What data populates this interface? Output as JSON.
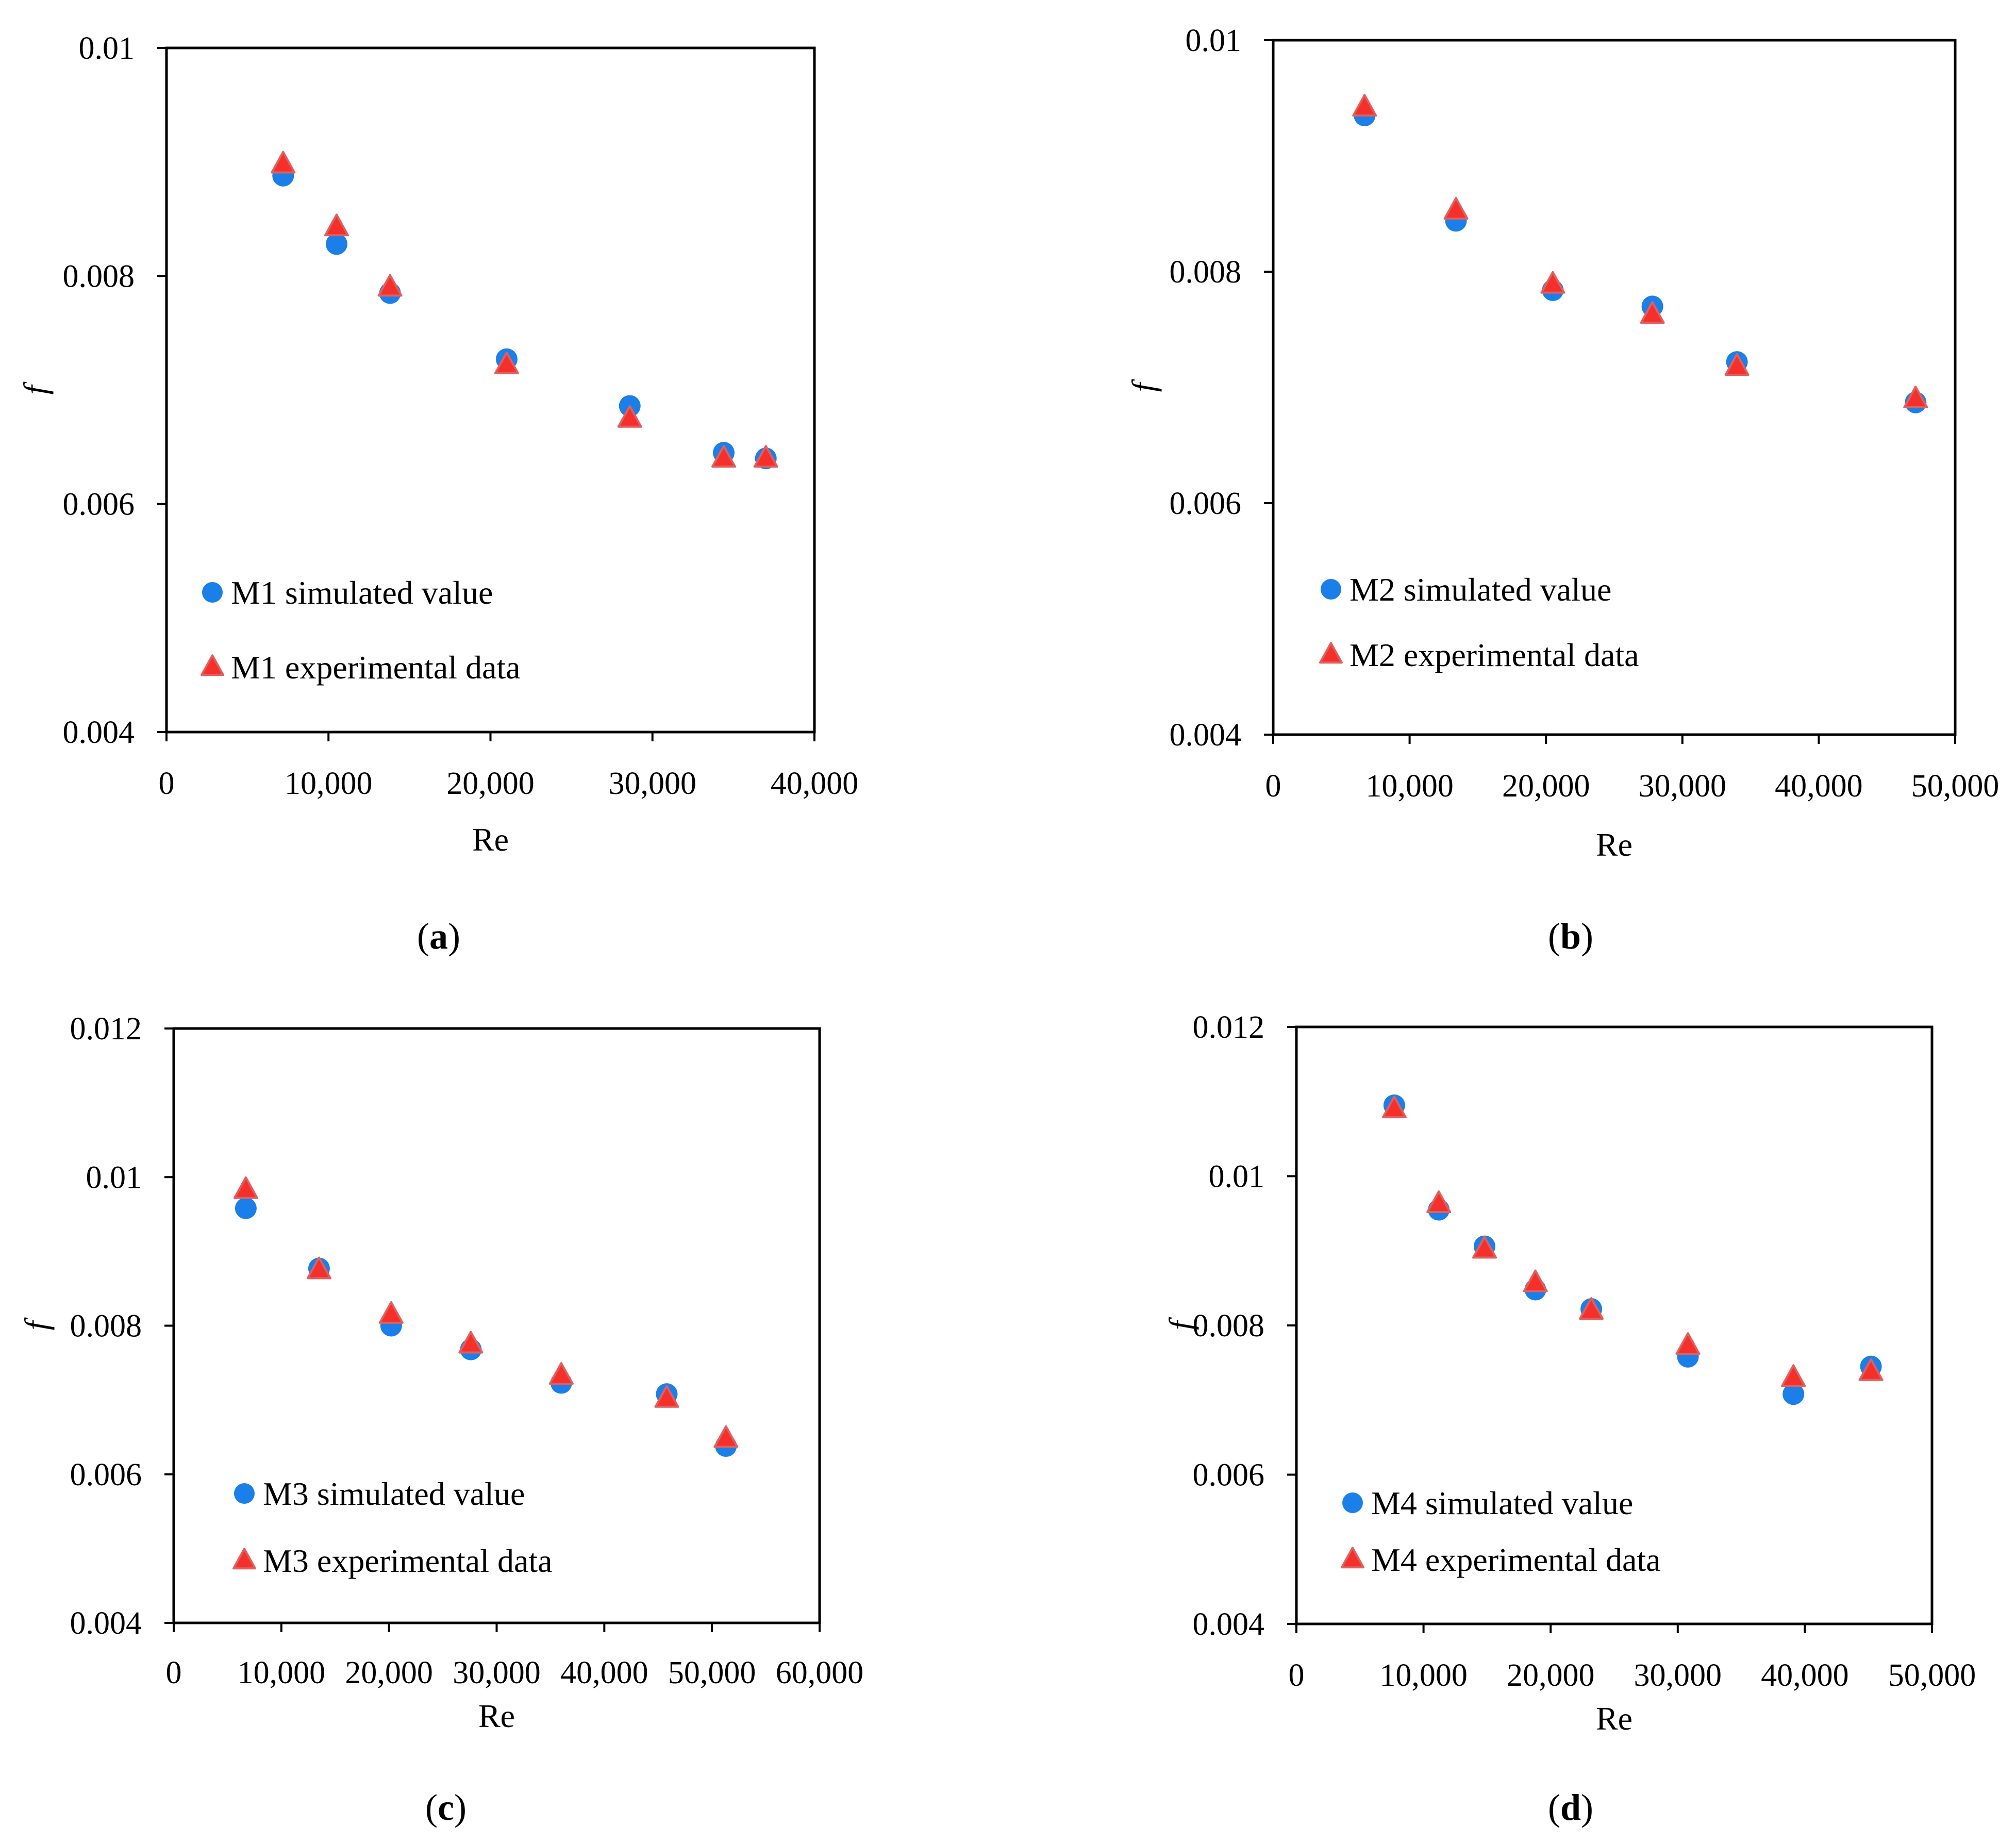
{
  "colors": {
    "simulated": "#1a7fe8",
    "experimental": "#f5302a",
    "experimental_edge": "#e06060"
  },
  "chart_data": [
    {
      "panel": "a",
      "caption": "a",
      "type": "scatter",
      "xlabel": "Re",
      "ylabel": "f",
      "xlim": [
        0,
        40000
      ],
      "ylim": [
        0.004,
        0.01
      ],
      "xticks": [
        0,
        10000,
        20000,
        30000,
        40000
      ],
      "xtick_labels": [
        "0",
        "10,000",
        "20,000",
        "30,000",
        "40,000"
      ],
      "yticks": [
        0.004,
        0.006,
        0.008,
        0.01
      ],
      "ytick_labels": [
        "0.004",
        "0.006",
        "0.008",
        "0.01"
      ],
      "legend_position": "bottom-left",
      "series": [
        {
          "name": "M1 simulated value",
          "marker": "circle",
          "x": [
            7200,
            10500,
            13800,
            21000,
            28600,
            34400,
            37000
          ],
          "y": [
            0.00888,
            0.00828,
            0.00785,
            0.00727,
            0.00686,
            0.00645,
            0.0064
          ]
        },
        {
          "name": "M1 experimental data",
          "marker": "triangle",
          "x": [
            7200,
            10500,
            13800,
            21000,
            28600,
            34400,
            37000
          ],
          "y": [
            0.00898,
            0.00843,
            0.0079,
            0.00722,
            0.00675,
            0.0064,
            0.0064
          ]
        }
      ]
    },
    {
      "panel": "b",
      "caption": "b",
      "type": "scatter",
      "xlabel": "Re",
      "ylabel": "f",
      "xlim": [
        0,
        50000
      ],
      "ylim": [
        0.004,
        0.01
      ],
      "xticks": [
        0,
        10000,
        20000,
        30000,
        40000,
        50000
      ],
      "xtick_labels": [
        "0",
        "10,000",
        "20,000",
        "30,000",
        "40,000",
        "50,000"
      ],
      "yticks": [
        0.004,
        0.006,
        0.008,
        0.01
      ],
      "ytick_labels": [
        "0.004",
        "0.006",
        "0.008",
        "0.01"
      ],
      "legend_position": "bottom-left",
      "series": [
        {
          "name": "M2 simulated value",
          "marker": "circle",
          "x": [
            6700,
            13400,
            20500,
            27800,
            34000,
            47100
          ],
          "y": [
            0.00935,
            0.00844,
            0.00784,
            0.0077,
            0.00722,
            0.00687
          ]
        },
        {
          "name": "M2 experimental data",
          "marker": "triangle",
          "x": [
            6700,
            13400,
            20500,
            27800,
            34000,
            47100
          ],
          "y": [
            0.00942,
            0.00853,
            0.00789,
            0.00763,
            0.00718,
            0.0069
          ]
        }
      ]
    },
    {
      "panel": "c",
      "caption": "c",
      "type": "scatter",
      "xlabel": "Re",
      "ylabel": "f",
      "xlim": [
        0,
        60000
      ],
      "ylim": [
        0.004,
        0.012
      ],
      "xticks": [
        0,
        10000,
        20000,
        30000,
        40000,
        50000,
        60000
      ],
      "xtick_labels": [
        "0",
        "10,000",
        "20,000",
        "30,000",
        "40,000",
        "50,000",
        "60,000"
      ],
      "yticks": [
        0.004,
        0.006,
        0.008,
        0.01,
        0.012
      ],
      "ytick_labels": [
        "0.004",
        "0.006",
        "0.008",
        "0.01",
        "0.012"
      ],
      "legend_position": "bottom-left",
      "series": [
        {
          "name": "M3 simulated value",
          "marker": "circle",
          "x": [
            6700,
            13500,
            20200,
            27600,
            36000,
            45800,
            51300
          ],
          "y": [
            0.00958,
            0.00877,
            0.008,
            0.00768,
            0.00723,
            0.00708,
            0.00638
          ]
        },
        {
          "name": "M3 experimental data",
          "marker": "triangle",
          "x": [
            6700,
            13500,
            20200,
            27600,
            36000,
            45800,
            51300
          ],
          "y": [
            0.00983,
            0.00875,
            0.00815,
            0.00775,
            0.00733,
            0.00702,
            0.00648
          ]
        }
      ]
    },
    {
      "panel": "d",
      "caption": "d",
      "type": "scatter",
      "xlabel": "Re",
      "ylabel": "f",
      "xlim": [
        0,
        50000
      ],
      "ylim": [
        0.004,
        0.012
      ],
      "xticks": [
        0,
        10000,
        20000,
        30000,
        40000,
        50000
      ],
      "xtick_labels": [
        "0",
        "10,000",
        "20,000",
        "30,000",
        "40,000",
        "50,000"
      ],
      "yticks": [
        0.004,
        0.006,
        0.008,
        0.01,
        0.012
      ],
      "ytick_labels": [
        "0.004",
        "0.006",
        "0.008",
        "0.01",
        "0.012"
      ],
      "legend_position": "bottom-left",
      "series": [
        {
          "name": "M4 simulated value",
          "marker": "circle",
          "x": [
            7700,
            11200,
            14800,
            18800,
            23200,
            30800,
            39100,
            45200
          ],
          "y": [
            0.01095,
            0.00955,
            0.00906,
            0.00848,
            0.00822,
            0.00758,
            0.00708,
            0.00745
          ]
        },
        {
          "name": "M4 experimental data",
          "marker": "triangle",
          "x": [
            7700,
            11200,
            14800,
            18800,
            23200,
            30800,
            39100,
            45200
          ],
          "y": [
            0.0109,
            0.00963,
            0.00902,
            0.00857,
            0.0082,
            0.00773,
            0.0073,
            0.00738
          ]
        }
      ]
    }
  ]
}
